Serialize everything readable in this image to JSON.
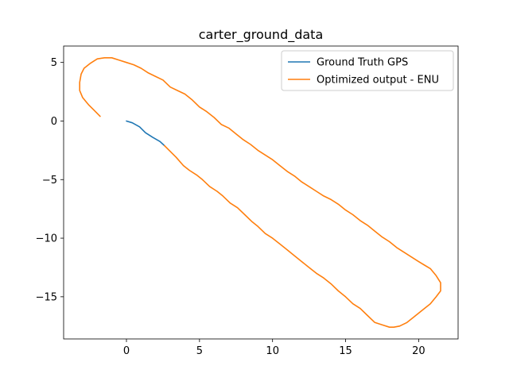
{
  "chart_data": {
    "type": "line",
    "title": "carter_ground_data",
    "xlabel": "",
    "ylabel": "",
    "xlim": [
      -4.3,
      22.7
    ],
    "ylim": [
      -18.6,
      6.4
    ],
    "xticks": [
      0,
      5,
      10,
      15,
      20
    ],
    "yticks": [
      5,
      0,
      -5,
      -10,
      -15
    ],
    "grid": false,
    "legend_position": "top-right",
    "series": [
      {
        "name": "Ground Truth GPS",
        "color": "#1f77b4",
        "x": [
          0,
          0.4,
          0.9,
          1.3,
          1.8,
          2.3,
          2.6
        ],
        "y": [
          0,
          -0.15,
          -0.5,
          -1.0,
          -1.4,
          -1.75,
          -2.1
        ]
      },
      {
        "name": "Optimized output - ENU",
        "color": "#ff7f0e",
        "x": [
          2.6,
          3.0,
          3.4,
          3.9,
          4.3,
          4.8,
          5.2,
          5.7,
          6.2,
          6.6,
          7.1,
          7.6,
          8.1,
          8.6,
          9.0,
          9.5,
          10.0,
          10.5,
          11.0,
          11.5,
          12.0,
          12.5,
          13.0,
          13.5,
          14.0,
          14.5,
          15.0,
          15.5,
          16.0,
          16.5,
          17.0,
          17.5,
          18.0,
          18.3,
          18.7,
          19.2,
          19.6,
          20.0,
          20.4,
          20.8,
          21.2,
          21.5,
          21.5,
          21.2,
          20.8,
          20.4,
          20.0,
          19.5,
          19.0,
          18.5,
          18.0,
          17.5,
          17.0,
          16.5,
          16.0,
          15.5,
          15.0,
          14.5,
          14.0,
          13.5,
          13.0,
          12.5,
          12.0,
          11.5,
          11.0,
          10.5,
          10.0,
          9.5,
          9.0,
          8.5,
          8.0,
          7.5,
          7.0,
          6.5,
          6.0,
          5.5,
          5.0,
          4.5,
          4.0,
          3.5,
          3.0,
          2.5,
          2.0,
          1.5,
          1.0,
          0.5,
          0.0,
          -0.5,
          -1.0,
          -1.5,
          -2.0,
          -2.5,
          -2.9,
          -3.1,
          -3.2,
          -3.2,
          -3.0,
          -2.6,
          -2.2,
          -1.8
        ],
        "y": [
          -2.1,
          -2.6,
          -3.1,
          -3.8,
          -4.2,
          -4.6,
          -5.0,
          -5.6,
          -6.0,
          -6.4,
          -7.0,
          -7.4,
          -8.0,
          -8.6,
          -9.0,
          -9.6,
          -10.0,
          -10.5,
          -11.0,
          -11.5,
          -12.0,
          -12.5,
          -13.0,
          -13.4,
          -13.9,
          -14.5,
          -15.0,
          -15.6,
          -16.0,
          -16.6,
          -17.2,
          -17.4,
          -17.6,
          -17.6,
          -17.5,
          -17.2,
          -16.8,
          -16.4,
          -16.0,
          -15.6,
          -15.0,
          -14.5,
          -13.8,
          -13.2,
          -12.6,
          -12.3,
          -12.0,
          -11.6,
          -11.2,
          -10.8,
          -10.3,
          -9.9,
          -9.4,
          -8.9,
          -8.5,
          -8.0,
          -7.6,
          -7.1,
          -6.7,
          -6.4,
          -6.0,
          -5.6,
          -5.2,
          -4.7,
          -4.3,
          -3.8,
          -3.3,
          -2.9,
          -2.5,
          -2.0,
          -1.6,
          -1.1,
          -0.6,
          -0.3,
          0.3,
          0.8,
          1.2,
          1.8,
          2.3,
          2.6,
          2.9,
          3.5,
          3.8,
          4.1,
          4.5,
          4.8,
          5.0,
          5.2,
          5.4,
          5.4,
          5.3,
          4.9,
          4.5,
          4.0,
          3.3,
          2.6,
          2.0,
          1.4,
          0.9,
          0.4
        ]
      }
    ]
  }
}
